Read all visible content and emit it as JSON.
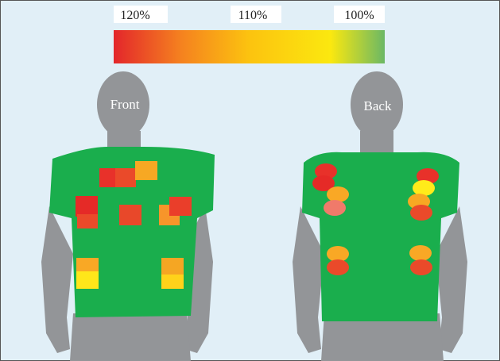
{
  "colorbar": {
    "labels": [
      "120%",
      "110%",
      "100%"
    ]
  },
  "figures": [
    {
      "label": "Front"
    },
    {
      "label": "Back"
    }
  ]
}
